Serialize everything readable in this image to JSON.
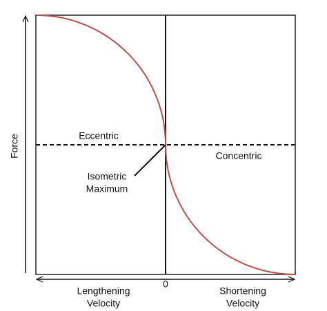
{
  "axes": {
    "vertical": "Force",
    "origin": "0",
    "left": [
      "Lengthening",
      "Velocity"
    ],
    "right": [
      "Shortening",
      "Velocity"
    ]
  },
  "regions": {
    "upper": "Eccentric",
    "lower": "Concentric"
  },
  "callout": [
    "Isometric",
    "Maximum"
  ]
}
